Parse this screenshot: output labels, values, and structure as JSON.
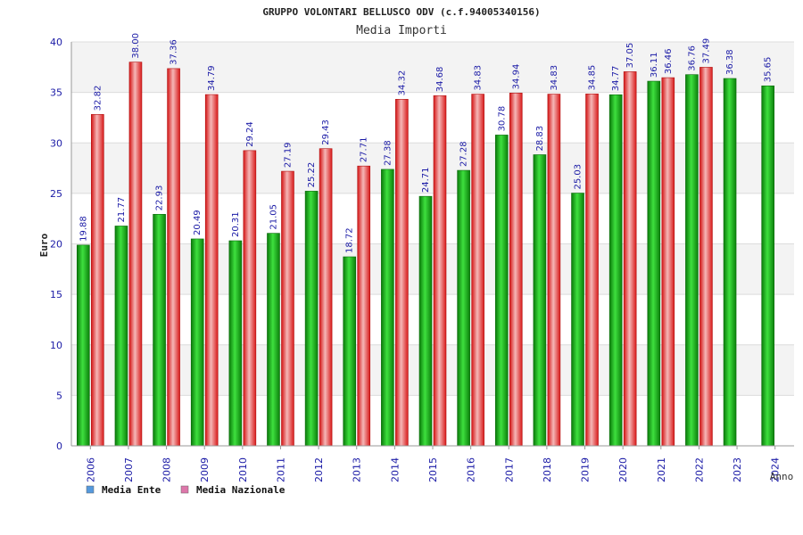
{
  "chart_data": {
    "type": "bar",
    "title": "GRUPPO VOLONTARI BELLUSCO ODV (c.f.94005340156)",
    "subtitle": "Media Importi",
    "ylabel": "Euro",
    "xlabel": "Anno",
    "ylim": [
      0,
      40
    ],
    "yticks": [
      0,
      5,
      10,
      15,
      20,
      25,
      30,
      35,
      40
    ],
    "grid": true,
    "legend_position": "bottom-left",
    "categories": [
      "2006",
      "2007",
      "2008",
      "2009",
      "2010",
      "2011",
      "2012",
      "2013",
      "2014",
      "2015",
      "2016",
      "2017",
      "2018",
      "2019",
      "2020",
      "2021",
      "2022",
      "2023",
      "2024"
    ],
    "series": [
      {
        "name": "Media Ente",
        "color": "#1fae1f",
        "legend_color": "#5599dd",
        "values": [
          19.88,
          21.77,
          22.93,
          20.49,
          20.31,
          21.05,
          25.22,
          18.72,
          27.38,
          24.71,
          27.28,
          30.78,
          28.83,
          25.03,
          34.77,
          36.11,
          36.76,
          36.38,
          35.65
        ],
        "labels": [
          "19.88",
          "21.77",
          "22.93",
          "20.49",
          "20.31",
          "21.05",
          "25.22",
          "18.72",
          "27.38",
          "24.71",
          "27.28",
          "30.78",
          "28.83",
          "25.03",
          "34.77",
          "36.11",
          "36.76",
          "36.38",
          "35.65"
        ]
      },
      {
        "name": "Media Nazionale",
        "color": "#e23a3a",
        "legend_color": "#dd77aa",
        "values": [
          32.82,
          38.0,
          37.36,
          34.79,
          29.24,
          27.19,
          29.43,
          27.71,
          34.32,
          34.68,
          34.83,
          34.94,
          34.83,
          34.85,
          37.05,
          36.46,
          37.49,
          null,
          null
        ],
        "labels": [
          "32.82",
          "38.00",
          "37.36",
          "34.79",
          "29.24",
          "27.19",
          "29.43",
          "27.71",
          "34.32",
          "34.68",
          "34.83",
          "34.94",
          "34.83",
          "34.85",
          "37.05",
          "36.46",
          "37.49",
          null,
          null
        ]
      }
    ]
  }
}
